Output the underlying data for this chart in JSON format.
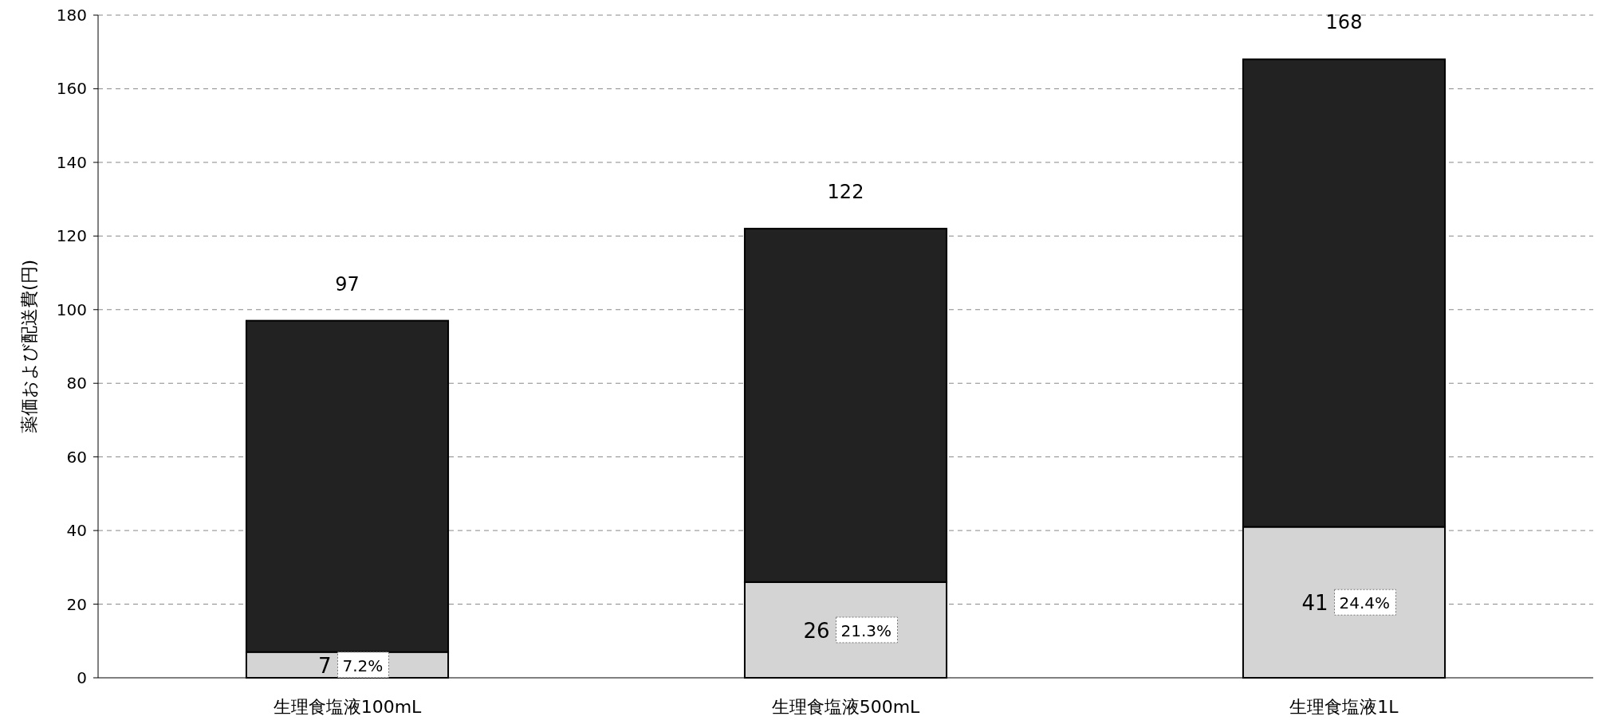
{
  "chart_data": {
    "type": "bar",
    "stacked": true,
    "ylabel": "薬価および配送費(円)",
    "categories": [
      "生理食塩液100mL",
      "生理食塩液500mL",
      "生理食塩液1L"
    ],
    "series": [
      {
        "color": "#d4d4d4",
        "values": [
          7,
          26,
          41
        ],
        "value_labels": [
          "7",
          "26",
          "41"
        ]
      },
      {
        "color": "#222222",
        "values": [
          90,
          96,
          127
        ]
      }
    ],
    "totals": [
      "97",
      "122",
      "168"
    ],
    "annotations": [
      "7.2%",
      "21.3%",
      "24.4%"
    ],
    "ylim": [
      0,
      180
    ],
    "yticks": [
      0,
      20,
      40,
      60,
      80,
      100,
      120,
      140,
      160,
      180
    ],
    "grid": "y"
  }
}
